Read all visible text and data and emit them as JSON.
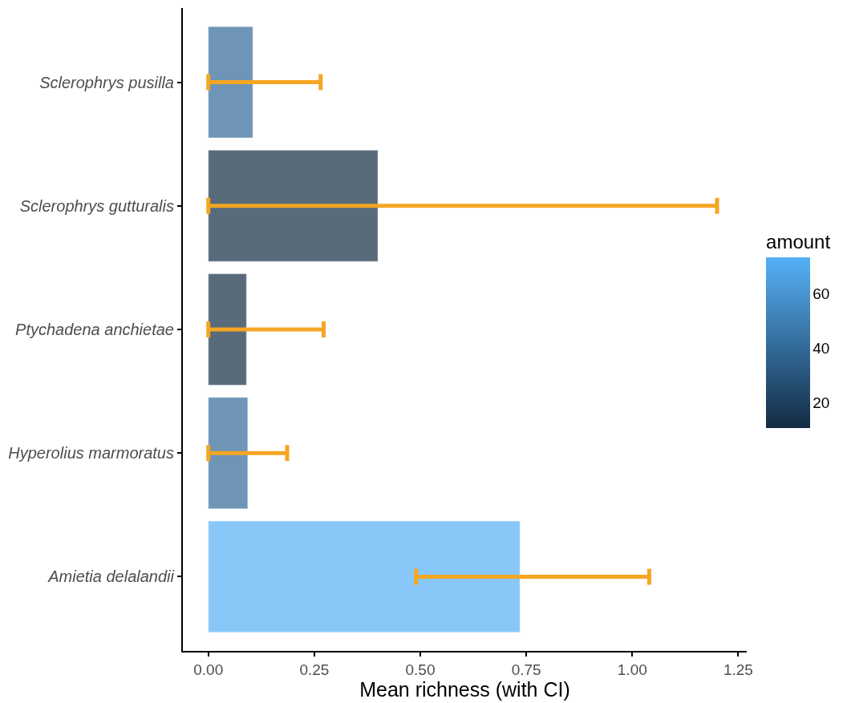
{
  "chart_data": {
    "type": "bar",
    "orientation": "horizontal",
    "xlabel": "Mean richness (with CI)",
    "clabel": "amount",
    "categories": [
      "Sclerophrys pusilla",
      "Sclerophrys gutturalis",
      "Ptychadena anchietae",
      "Hyperolius marmoratus",
      "Amietia delalandii"
    ],
    "values": [
      0.105,
      0.4,
      0.09,
      0.093,
      0.735
    ],
    "cvalues": [
      40,
      11,
      11,
      40,
      74
    ],
    "errors": [
      [
        0,
        0.265
      ],
      [
        0,
        1.2
      ],
      [
        0,
        0.272
      ],
      [
        0,
        0.186
      ],
      [
        0.49,
        1.04
      ]
    ],
    "clim": [
      10.7,
      73.7
    ],
    "cticks": [
      20,
      40,
      60
    ],
    "xlim": [
      -0.06,
      1.27
    ],
    "xticks": [
      {
        "value": 0,
        "label": "0.00"
      },
      {
        "value": 0.25,
        "label": "0.25"
      },
      {
        "value": 0.5,
        "label": "0.50"
      },
      {
        "value": 0.75,
        "label": "0.75"
      },
      {
        "value": 1,
        "label": "1.00"
      },
      {
        "value": 1.25,
        "label": "1.25"
      }
    ]
  }
}
